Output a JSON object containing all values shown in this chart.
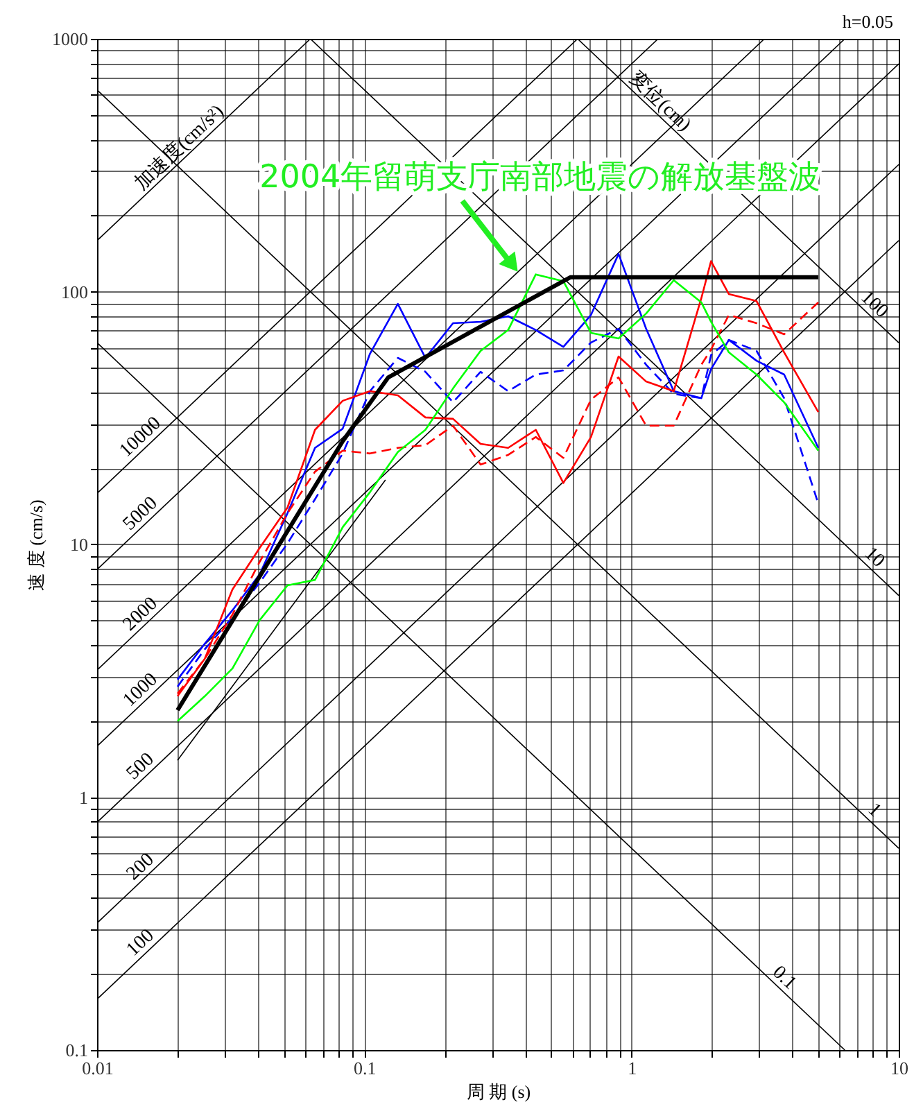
{
  "chart_data": {
    "type": "line",
    "xlabel": "周 期 (s)",
    "ylabel": "速 度 (cm/s)",
    "log": "xy",
    "grid": true,
    "xlim": [
      0.01,
      10
    ],
    "ylim": [
      0.1,
      1000
    ],
    "xticks": [
      "0.01",
      {
        "value": 0.02,
        "label": null
      },
      {
        "value": 0.03,
        "label": null
      },
      {
        "value": 0.04,
        "label": null
      },
      {
        "value": 0.05,
        "label": null
      },
      {
        "value": 0.06,
        "label": null
      },
      {
        "value": 0.07,
        "label": null
      },
      {
        "value": 0.08,
        "label": null
      },
      {
        "value": 0.09,
        "label": null
      },
      {
        "value": 0.1,
        "label": "0.1"
      },
      {
        "value": 0.2,
        "label": null
      },
      {
        "value": 0.3,
        "label": null
      },
      {
        "value": 0.4,
        "label": null
      },
      {
        "value": 0.5,
        "label": null
      },
      {
        "value": 0.6,
        "label": null
      },
      {
        "value": 0.7,
        "label": null
      },
      {
        "value": 0.8,
        "label": null
      },
      {
        "value": 0.9,
        "label": null
      },
      1,
      {
        "value": 2,
        "label": null
      },
      {
        "value": 3,
        "label": null
      },
      {
        "value": 4,
        "label": null
      },
      {
        "value": 5,
        "label": null
      },
      {
        "value": 6,
        "label": null
      },
      {
        "value": 7,
        "label": null
      },
      {
        "value": 8,
        "label": null
      },
      {
        "value": 9,
        "label": null
      },
      10
    ],
    "yticks": [
      {
        "value": 0.1,
        "label": "0.1"
      },
      {
        "value": 0.2,
        "label": null
      },
      {
        "value": 0.3,
        "label": null
      },
      {
        "value": 0.4,
        "label": null
      },
      {
        "value": 0.5,
        "label": null
      },
      {
        "value": 0.6,
        "label": null
      },
      {
        "value": 0.7,
        "label": null
      },
      {
        "value": 0.8,
        "label": null
      },
      {
        "value": 0.9,
        "label": null
      },
      1,
      {
        "value": 2,
        "label": null
      },
      {
        "value": 3,
        "label": null
      },
      {
        "value": 4,
        "label": null
      },
      {
        "value": 5,
        "label": null
      },
      {
        "value": 6,
        "label": null
      },
      {
        "value": 7,
        "label": null
      },
      {
        "value": 8,
        "label": null
      },
      {
        "value": 9,
        "label": null
      },
      10,
      {
        "value": 20,
        "label": null
      },
      {
        "value": 30,
        "label": null
      },
      {
        "value": 40,
        "label": null
      },
      {
        "value": 50,
        "label": null
      },
      {
        "value": 60,
        "label": null
      },
      {
        "value": 70,
        "label": null
      },
      {
        "value": 80,
        "label": null
      },
      {
        "value": 90,
        "label": null
      },
      100,
      {
        "value": 200,
        "label": null
      },
      {
        "value": 300,
        "label": null
      },
      {
        "value": 400,
        "label": null
      },
      {
        "value": 500,
        "label": null
      },
      {
        "value": 600,
        "label": null
      },
      {
        "value": 700,
        "label": null
      },
      {
        "value": 800,
        "label": null
      },
      {
        "value": 900,
        "label": null
      },
      1000
    ],
    "x": [
      0.02,
      0.0253,
      0.0321,
      0.0406,
      0.0516,
      0.0654,
      0.083,
      0.105,
      0.1335,
      0.1693,
      0.2148,
      0.2723,
      0.3454,
      0.4383,
      0.5559,
      0.7051,
      0.8944,
      1.134,
      1.439,
      1.825,
      1.984,
      2.314,
      2.936,
      3.725,
      5
    ],
    "series": [
      {
        "color": "#000000",
        "x": [
          0.01,
          10
        ],
        "values": [
          0.159,
          159.2
        ]
      },
      {
        "color": "#000000",
        "x": [
          0.01,
          10
        ],
        "values": [
          0.318,
          318.3
        ]
      },
      {
        "color": "#000000",
        "x": [
          0.01,
          10
        ],
        "values": [
          0.796,
          795.8
        ]
      },
      {
        "color": "#000000",
        "x": [
          0.01,
          6.283
        ],
        "values": [
          1.592,
          1000
        ]
      },
      {
        "color": "#000000",
        "x": [
          0.01,
          3.142
        ],
        "values": [
          3.183,
          1000
        ]
      },
      {
        "color": "#000000",
        "x": [
          0.01,
          1.257
        ],
        "values": [
          7.958,
          1000
        ]
      },
      {
        "color": "#000000",
        "x": [
          0.01,
          0.6283
        ],
        "values": [
          15.92,
          1000
        ]
      },
      {
        "color": "#000000",
        "x": [
          0.01,
          0.06283
        ],
        "values": [
          159.2,
          1000
        ]
      },
      {
        "color": "#000000",
        "x": [
          0.6283,
          10
        ],
        "values": [
          1000,
          62.83
        ]
      },
      {
        "color": "#000000",
        "x": [
          0.06283,
          10
        ],
        "values": [
          1000,
          6.283
        ]
      },
      {
        "color": "#000000",
        "x": [
          0.01,
          10
        ],
        "values": [
          628.3,
          0.6283
        ]
      },
      {
        "color": "#000000",
        "x": [
          0.01,
          6.283
        ],
        "values": [
          62.83,
          0.1
        ]
      },
      {
        "color": "#000000",
        "x": [
          0.02,
          0.12
        ],
        "values": [
          1.4,
          18
        ]
      },
      {
        "color": "#0000ff",
        "values": [
          2.92,
          4.05,
          5.49,
          7.62,
          13.3,
          24.1,
          28.7,
          56.8,
          89.5,
          54.7,
          75.0,
          76.0,
          79.9,
          70.5,
          60.5,
          80.9,
          141,
          71.3,
          40.4,
          37.9,
          49.4,
          64.4,
          53.3,
          47.0,
          24.1
        ]
      },
      {
        "color": "#0000ff",
        "line_style": "dashed",
        "values": [
          2.74,
          3.85,
          5.15,
          7.06,
          10.1,
          15.1,
          22.9,
          40.4,
          54.7,
          48.2,
          36.5,
          48.2,
          40.4,
          47.0,
          48.8,
          62.9,
          71.3,
          51.4,
          39.4,
          37.9,
          56.1,
          64.4,
          58.3,
          37.9,
          14.5
        ]
      },
      {
        "color": "#ff0000",
        "values": [
          2.51,
          3.53,
          6.63,
          9.69,
          14.0,
          28.4,
          37.0,
          40.4,
          38.9,
          31.8,
          31.4,
          25.0,
          24.1,
          28.4,
          17.5,
          26.6,
          55.4,
          44.1,
          40.4,
          94.2,
          132,
          97.8,
          91.8,
          57.5,
          33.4
        ]
      },
      {
        "color": "#ff0000",
        "line_style": "dashed",
        "values": [
          2.57,
          3.53,
          5.28,
          8.54,
          13.3,
          19.4,
          23.5,
          22.9,
          24.1,
          24.7,
          29.5,
          20.7,
          22.6,
          26.6,
          22.0,
          37.4,
          45.8,
          29.5,
          29.5,
          51.4,
          59.0,
          80.9,
          75.0,
          67.8,
          90.7
        ]
      },
      {
        "color": "#00ff00",
        "values": [
          2.0,
          2.51,
          3.23,
          5.02,
          6.89,
          7.24,
          11.7,
          16.1,
          23.2,
          28.4,
          41.4,
          58.3,
          70.5,
          117,
          110,
          68.7,
          65.3,
          81.9,
          111,
          90.7,
          76.0,
          57.5,
          47.0,
          36.5,
          23.5
        ]
      },
      {
        "color": "#000000",
        "x": [
          0.02,
          0.083,
          0.123,
          0.59,
          5
        ],
        "values": [
          2.21,
          25.6,
          45.8,
          114,
          114
        ]
      }
    ],
    "annotations": [
      {
        "text": "2004年留萌支庁南部地震の解放基盤波",
        "x": 0.38,
        "y": 117
      },
      "h=0.05",
      {
        "text": "加速度(cm/s²)",
        "x": 0.0217,
        "y": 345
      },
      {
        "text": "10000",
        "x": 0.0155,
        "y": 24.7
      },
      {
        "text": "5000",
        "x": 0.0155,
        "y": 12.3
      },
      {
        "text": "2000",
        "x": 0.0155,
        "y": 4.93
      },
      {
        "text": "1000",
        "x": 0.0155,
        "y": 2.47
      },
      {
        "text": "500",
        "x": 0.0155,
        "y": 1.23
      },
      {
        "text": "200",
        "x": 0.0155,
        "y": 0.493
      },
      {
        "text": "100",
        "x": 0.0155,
        "y": 0.247
      },
      {
        "text": "変位(cm)",
        "x": 1.2,
        "y": 523.6
      },
      {
        "text": "100",
        "x": 7.6,
        "y": 82.7
      },
      {
        "text": "10",
        "x": 7.6,
        "y": 8.27
      },
      {
        "text": "1",
        "x": 7.6,
        "y": 0.827
      },
      {
        "text": "0.1",
        "x": 3.5,
        "y": 0.1795
      }
    ]
  }
}
